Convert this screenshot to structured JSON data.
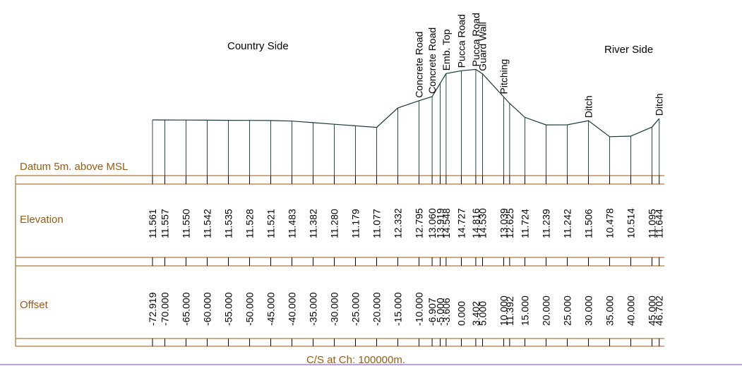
{
  "title": "C/S at Ch: 100000m.",
  "datum_label": "Datum 5m. above MSL",
  "row_labels": {
    "elevation": "Elevation",
    "offset": "Offset"
  },
  "side_labels": {
    "left": "Country Side",
    "right": "River Side"
  },
  "colors": {
    "band_line": "#9a5a12",
    "profile": "#1a3a34",
    "grid": "#1f4d44",
    "label": "#9a5a12"
  },
  "chart_data": {
    "type": "line",
    "xlabel": "Offset",
    "ylabel": "Elevation",
    "offsets": [
      "-72.919",
      "-70.000",
      "-65.000",
      "-60.000",
      "-55.000",
      "-50.000",
      "-45.000",
      "-40.000",
      "-35.000",
      "-30.000",
      "-25.000",
      "-20.000",
      "-15.000",
      "-10.000",
      "-6.907",
      "-5.000",
      "-3.606",
      "0.000",
      "3.402",
      "5.000",
      "10.000",
      "11.392",
      "15.000",
      "20.000",
      "25.000",
      "30.000",
      "35.000",
      "40.000",
      "45.000",
      "46.702"
    ],
    "elevations": [
      "11.561",
      "11.557",
      "11.550",
      "11.542",
      "11.535",
      "11.528",
      "11.521",
      "11.483",
      "11.382",
      "11.280",
      "11.179",
      "11.077",
      "12.332",
      "12.795",
      "13.060",
      "13.919",
      "14.548",
      "14.727",
      "14.816",
      "14.530",
      "13.039",
      "12.625",
      "11.724",
      "11.239",
      "11.242",
      "11.506",
      "10.478",
      "10.514",
      "11.095",
      "11.644"
    ],
    "feature_labels": [
      {
        "offset": -10.0,
        "text": "Concrete Road"
      },
      {
        "offset": -6.907,
        "text": "Concrete Road"
      },
      {
        "offset": -3.606,
        "text": "Emb. Top"
      },
      {
        "offset": 0.0,
        "text": "Pucca Road"
      },
      {
        "offset": 3.402,
        "text": "Pucca Road"
      },
      {
        "offset": 5.0,
        "text": "Guard Wall"
      },
      {
        "offset": 10.0,
        "text": "Pitching"
      },
      {
        "offset": 30.0,
        "text": "Ditch"
      },
      {
        "offset": 46.702,
        "text": "Ditch"
      }
    ]
  }
}
